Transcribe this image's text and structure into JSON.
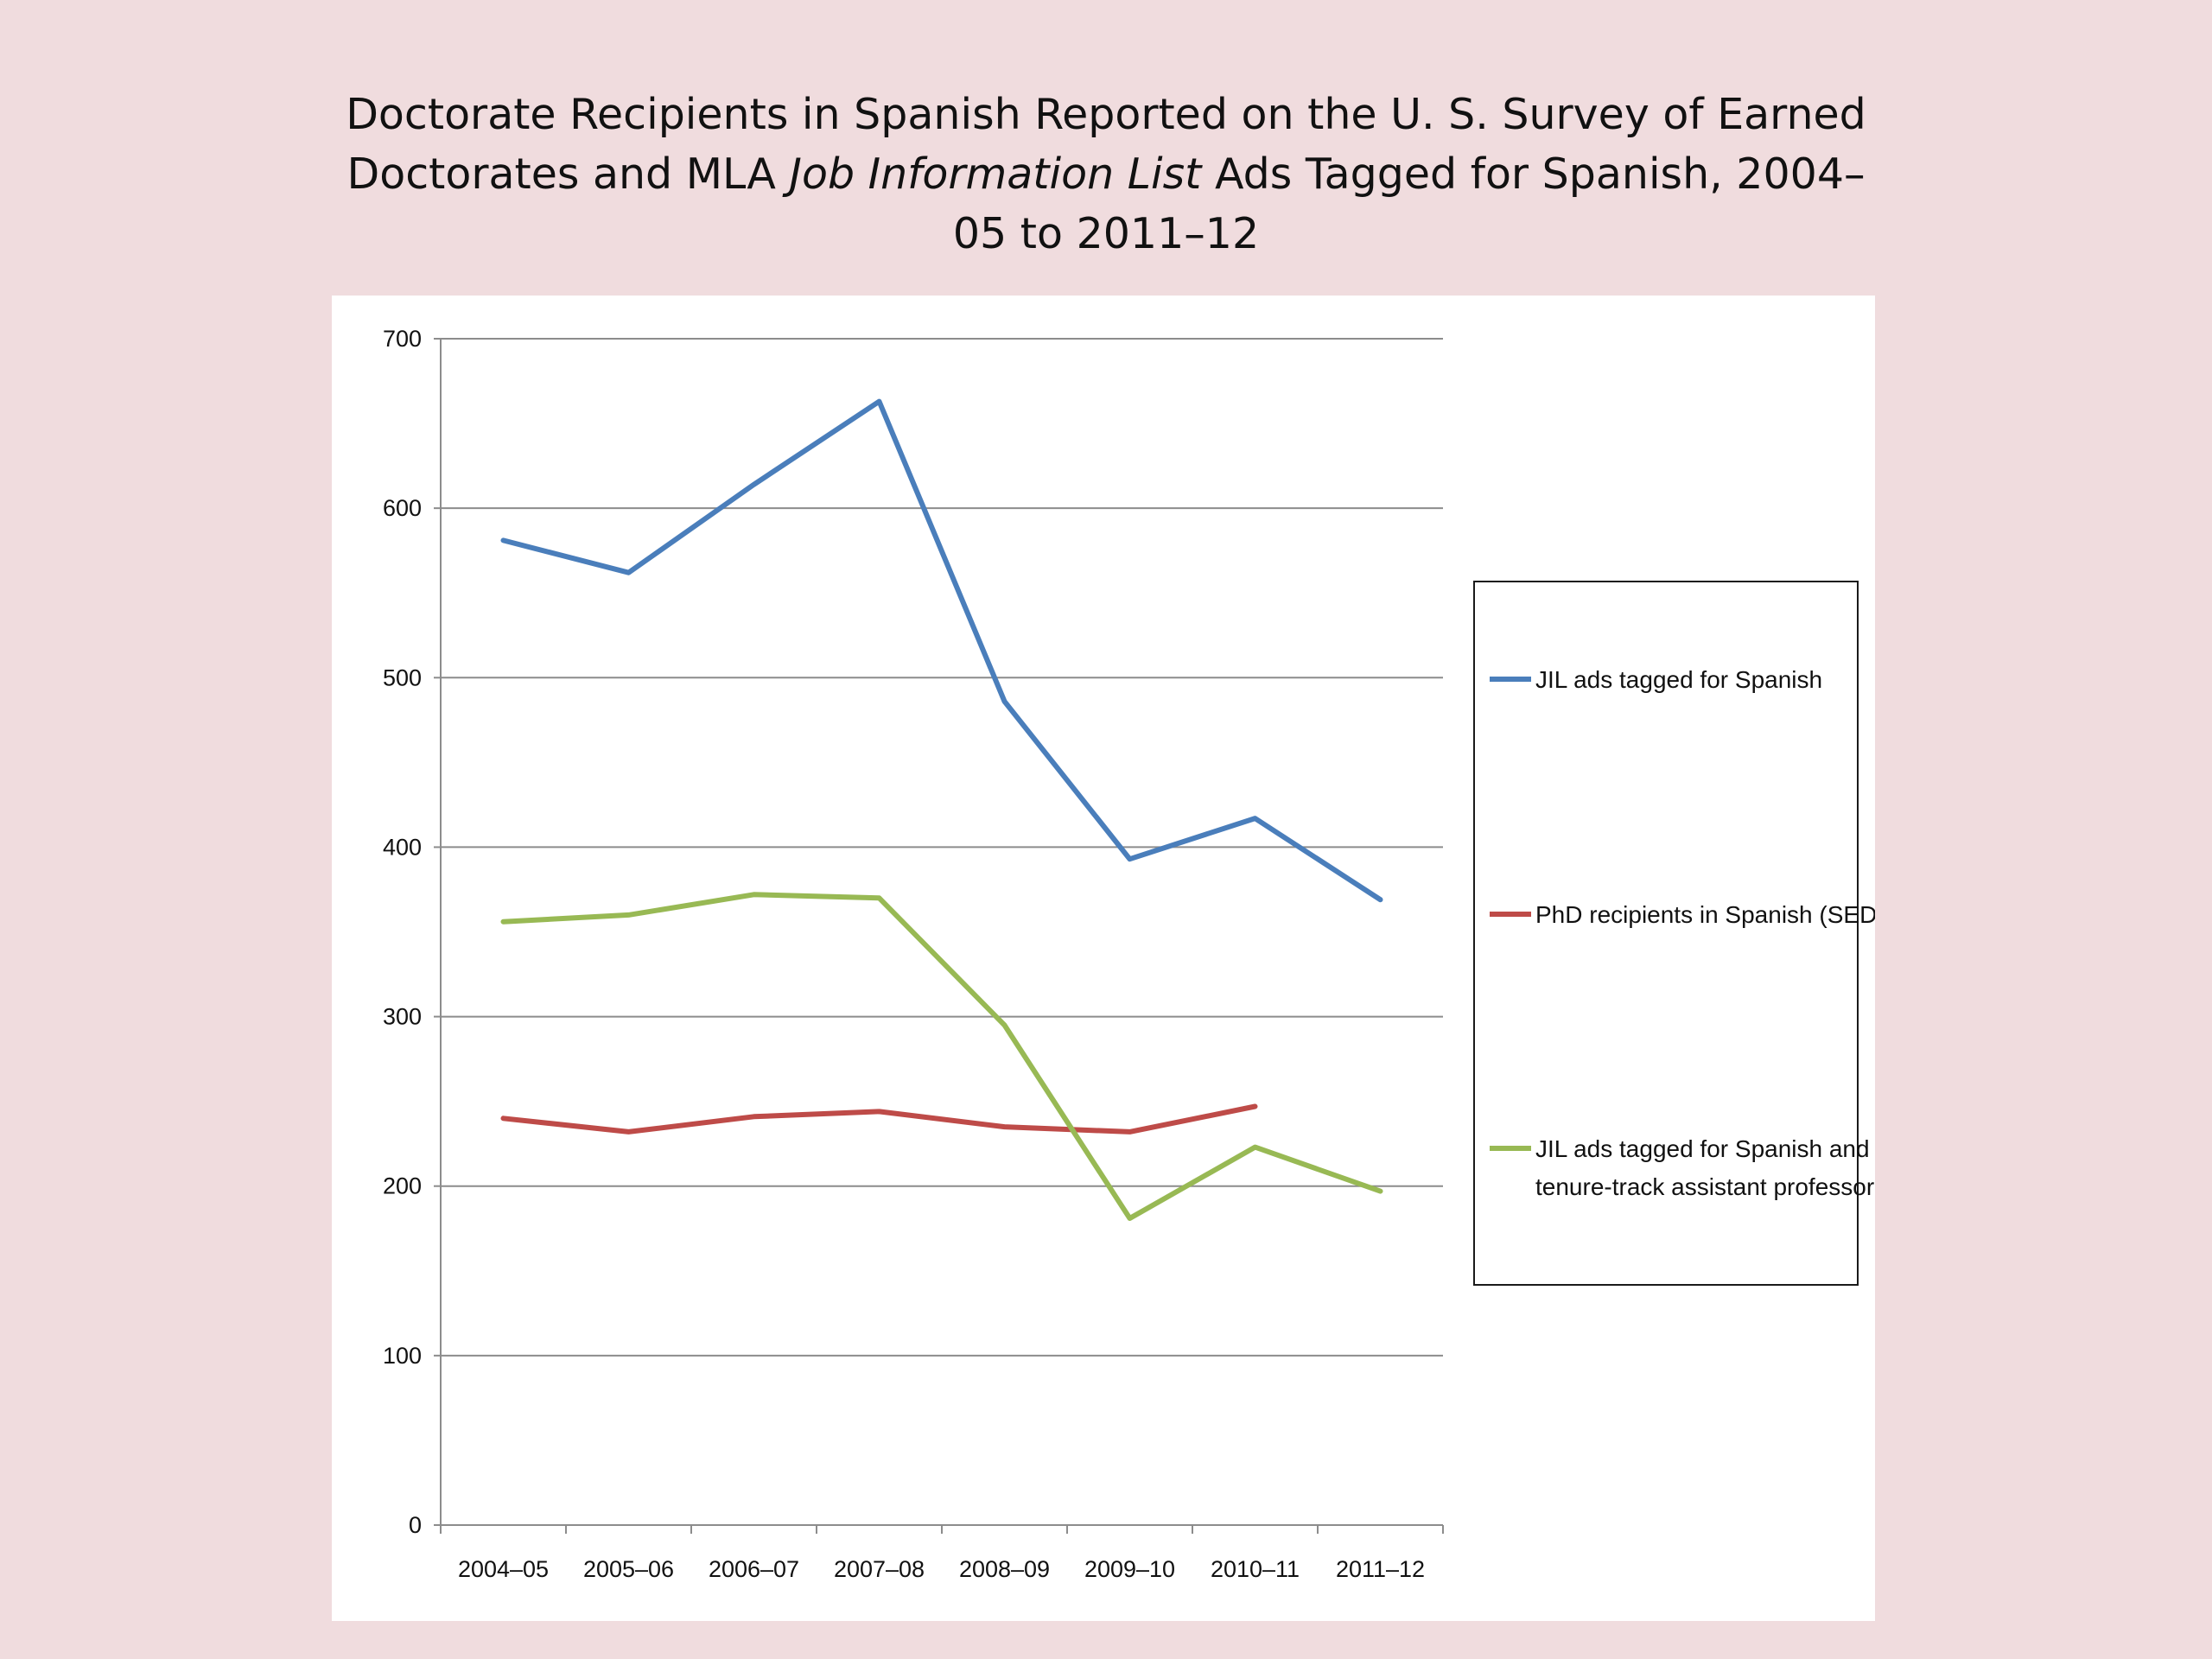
{
  "slide": {
    "title_part1": "Doctorate Recipients in Spanish Reported on the U. S. Survey of Earned Doctorates and MLA ",
    "title_italic": "Job Information List",
    "title_part2": " Ads Tagged for Spanish, 2004–05 to 2011–12"
  },
  "chart_data": {
    "type": "line",
    "title": "Doctorate Recipients in Spanish Reported on the U. S. Survey of Earned Doctorates and MLA Job Information List Ads Tagged for Spanish, 2004–05 to 2011–12",
    "xlabel": "",
    "ylabel": "",
    "categories": [
      "2004–05",
      "2005–06",
      "2006–07",
      "2007–08",
      "2008–09",
      "2009–10",
      "2010–11",
      "2011–12"
    ],
    "ylim": [
      0,
      700
    ],
    "yticks": [
      "0",
      "100",
      "200",
      "300",
      "400",
      "500",
      "600",
      "700"
    ],
    "grid": true,
    "legend_position": "right",
    "series": [
      {
        "name": "JIL ads tagged for Spanish",
        "color": "#4a7ebb",
        "values": [
          581,
          562,
          614,
          663,
          486,
          393,
          417,
          369
        ]
      },
      {
        "name": "PhD recipients in Spanish (SED)",
        "color": "#be4b48",
        "values": [
          240,
          232,
          241,
          244,
          235,
          232,
          247,
          null
        ]
      },
      {
        "name": "JIL ads tagged for Spanish and tenure-track assistant professor",
        "name_line1": "JIL ads tagged for Spanish and",
        "name_line2": "tenure-track assistant professor",
        "color": "#98b954",
        "values": [
          356,
          360,
          372,
          370,
          295,
          181,
          223,
          197
        ]
      }
    ]
  }
}
